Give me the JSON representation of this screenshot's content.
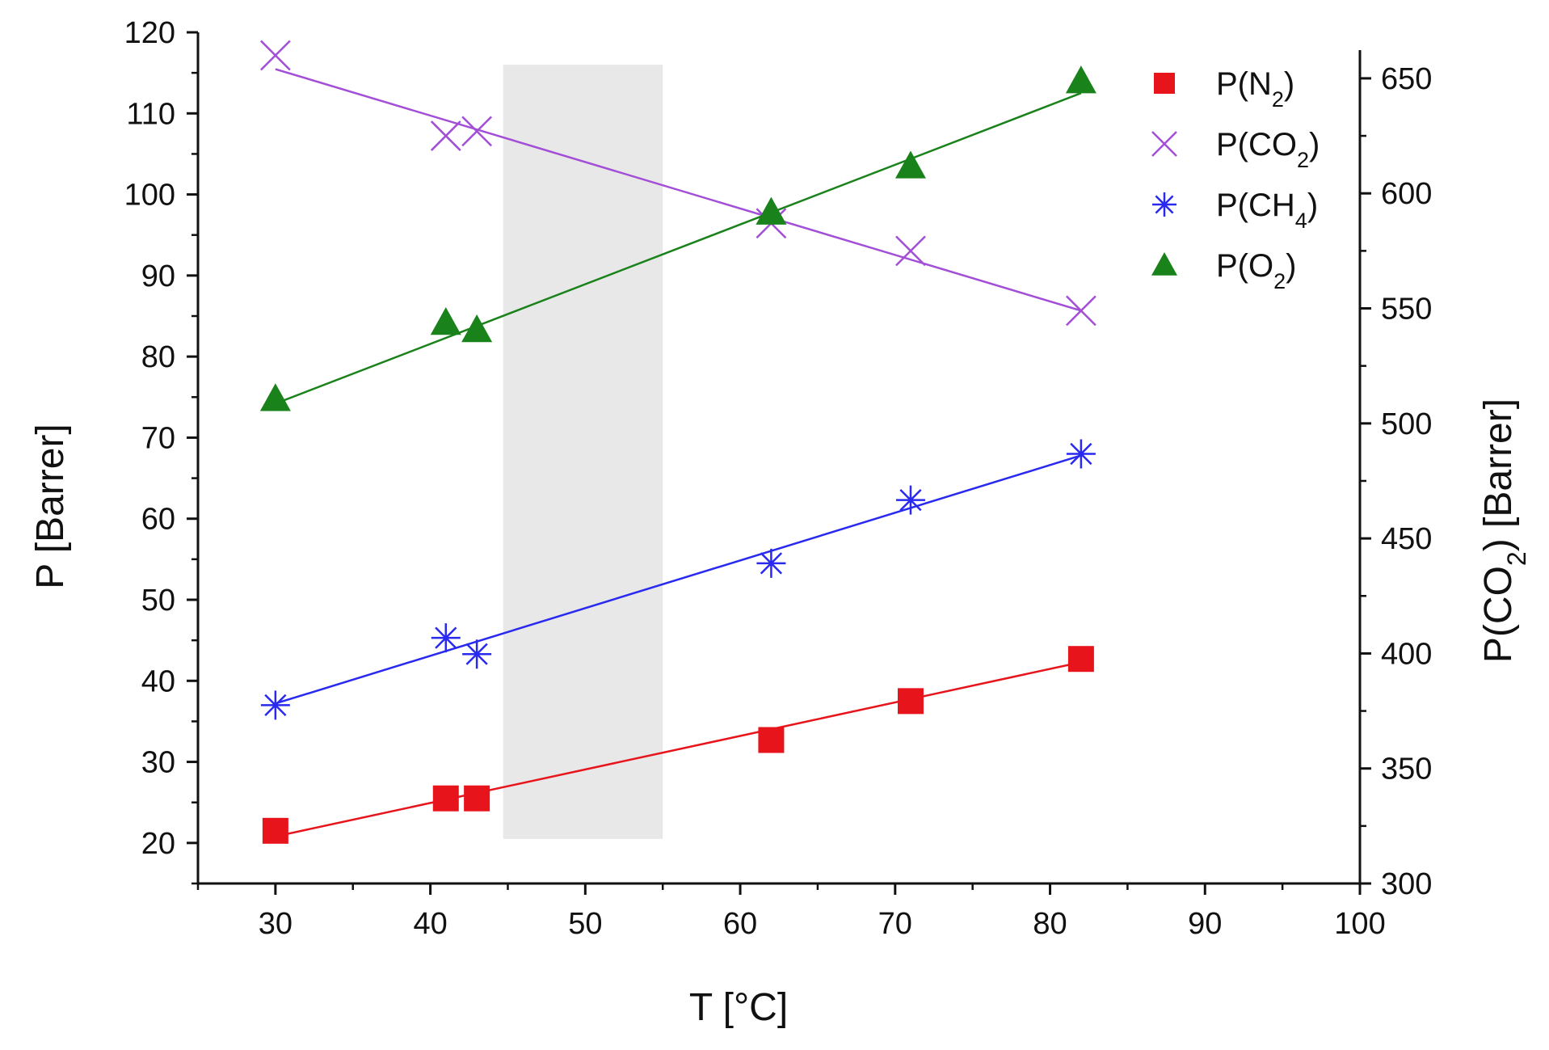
{
  "chart_data": {
    "type": "scatter",
    "title": "",
    "xlabel": "T [°C]",
    "ylabel": "P [Barrer]",
    "y2label": {
      "prefix": "P(CO",
      "subscript": "2",
      "suffix": ") [Barrer]"
    },
    "xlim": [
      25,
      100
    ],
    "ylim": [
      15,
      120
    ],
    "y2lim": [
      300,
      670
    ],
    "x_ticks": [
      30,
      40,
      50,
      60,
      70,
      80,
      90,
      100
    ],
    "y_ticks": [
      20,
      30,
      40,
      50,
      60,
      70,
      80,
      90,
      100,
      110,
      120
    ],
    "y2_ticks": [
      300,
      350,
      400,
      450,
      500,
      550,
      600,
      650
    ],
    "grid": false,
    "legend_position": "top-right",
    "shaded_region": {
      "x_from": 44.7,
      "x_to": 55.0,
      "y_from": 20.5,
      "y_to": 116.0,
      "color": "#e8e8e8"
    },
    "series": [
      {
        "name": "P(N2)",
        "label_main": "P(N",
        "label_sub": "2",
        "label_end": ")",
        "axis": "left",
        "marker": "square",
        "color": "#e8141c",
        "x": [
          30,
          41,
          43,
          62,
          71,
          82
        ],
        "y": [
          21.5,
          25.5,
          25.5,
          32.7,
          37.5,
          42.7
        ],
        "fit": [
          [
            30,
            20.8
          ],
          [
            82,
            42.3
          ]
        ]
      },
      {
        "name": "P(CO2)",
        "label_main": "P(CO",
        "label_sub": "2",
        "label_end": ")",
        "axis": "right",
        "marker": "cross",
        "color": "#a34ed6",
        "x": [
          30,
          41,
          43,
          62,
          71,
          82
        ],
        "y": [
          660,
          625,
          627,
          587,
          575,
          549
        ],
        "fit": [
          [
            30,
            654
          ],
          [
            82,
            549
          ]
        ]
      },
      {
        "name": "P(CH4)",
        "label_main": "P(CH",
        "label_sub": "4",
        "label_end": ")",
        "axis": "left",
        "marker": "asterisk",
        "color": "#2929f0",
        "x": [
          30,
          41,
          43,
          62,
          71,
          82
        ],
        "y": [
          37.0,
          45.3,
          43.3,
          54.5,
          62.3,
          68.0
        ],
        "fit": [
          [
            30,
            37.2
          ],
          [
            82,
            67.8
          ]
        ]
      },
      {
        "name": "P(O2)",
        "label_main": "P(O",
        "label_sub": "2",
        "label_end": ")",
        "axis": "left",
        "marker": "triangle",
        "color": "#1a821a",
        "x": [
          30,
          41,
          43,
          62,
          71,
          82
        ],
        "y": [
          74.8,
          84.2,
          83.3,
          97.8,
          103.5,
          114.0
        ],
        "fit": [
          [
            30,
            74.2
          ],
          [
            82,
            112.5
          ]
        ]
      }
    ]
  }
}
